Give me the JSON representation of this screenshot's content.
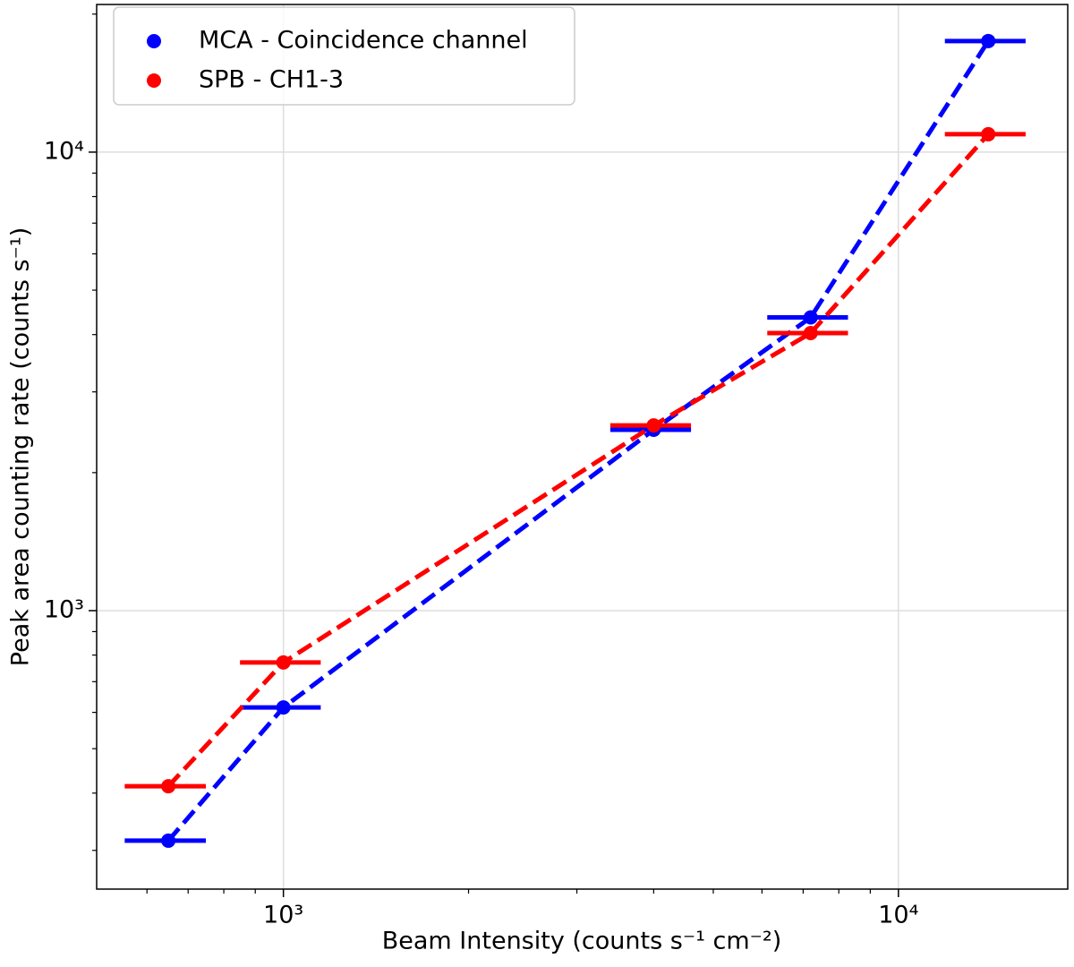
{
  "chart_data": {
    "type": "line",
    "xlabel": "Beam Intensity (counts s⁻¹ cm⁻²)",
    "ylabel": "Peak area counting rate (counts s⁻¹)",
    "x": [
      650,
      1000,
      4000,
      7200,
      14000
    ],
    "series": [
      {
        "name": "MCA - Coincidence channel",
        "color": "#0000ff",
        "values": [
          315,
          615,
          2480,
          4360,
          17470
        ],
        "xerr": [
          98,
          150,
          600,
          1080,
          2100
        ]
      },
      {
        "name": "SPB - CH1-3",
        "color": "#ff0000",
        "values": [
          414,
          771,
          2535,
          4030,
          10940
        ],
        "xerr": [
          98,
          150,
          600,
          1080,
          2100
        ]
      }
    ],
    "xscale": "log",
    "yscale": "log",
    "xlim": [
      497,
      18850
    ],
    "ylim": [
      247,
      20990
    ],
    "xticks": [
      {
        "value": 1000,
        "label": "10³"
      },
      {
        "value": 10000,
        "label": "10⁴"
      }
    ],
    "yticks": [
      {
        "value": 1000,
        "label": "10³"
      },
      {
        "value": 10000,
        "label": "10⁴"
      }
    ],
    "xminor": [
      600,
      700,
      800,
      900,
      2000,
      3000,
      4000,
      5000,
      6000,
      7000,
      8000,
      9000
    ],
    "yminor": [
      300,
      400,
      500,
      600,
      700,
      800,
      900,
      2000,
      3000,
      4000,
      5000,
      6000,
      7000,
      8000,
      9000,
      20000
    ],
    "grid": true,
    "legend": "upper left",
    "linestyle": "dashed"
  }
}
